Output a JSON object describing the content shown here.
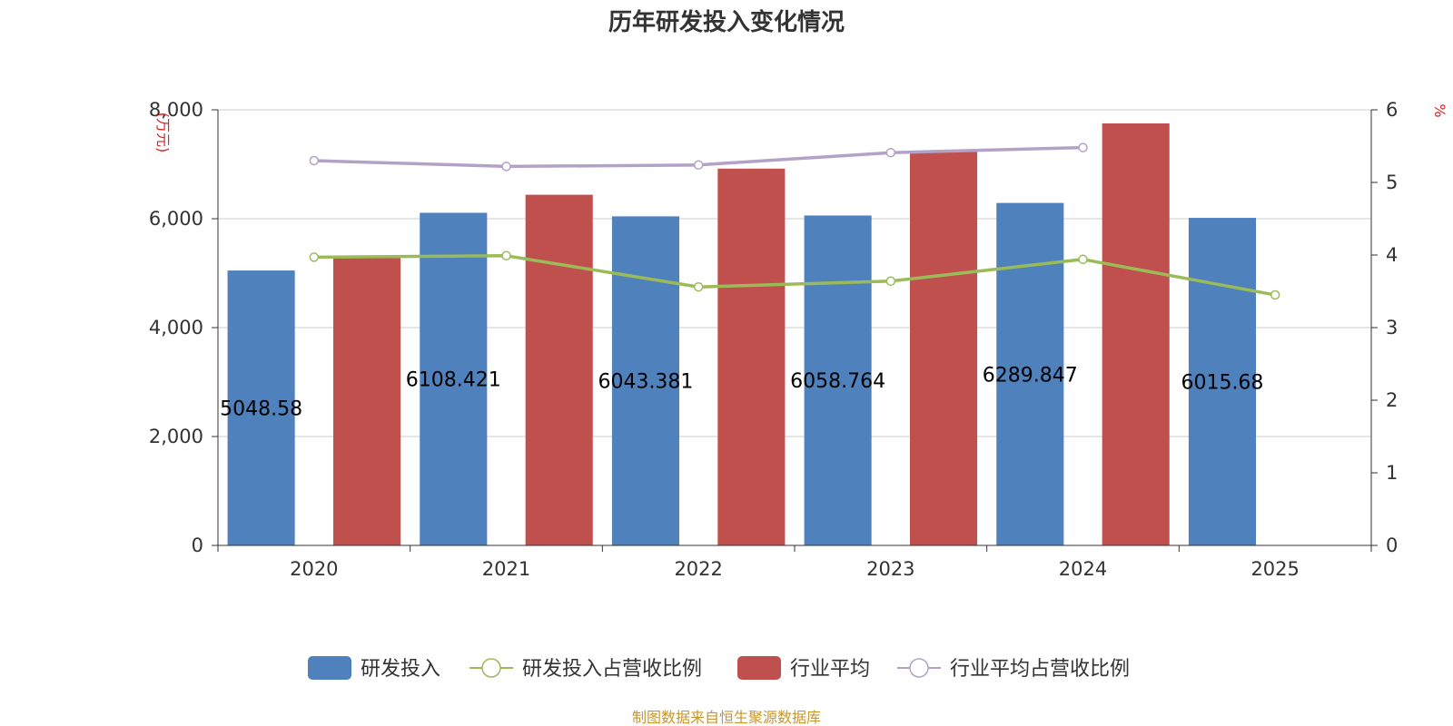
{
  "chart_data": {
    "type": "bar",
    "title": "历年研发投入变化情况",
    "categories": [
      "2020",
      "2021",
      "2022",
      "2023",
      "2024",
      "2025"
    ],
    "y_left": {
      "unit": "(万元)",
      "range": [
        0,
        8000
      ],
      "ticks": [
        "0",
        "2,000",
        "4,000",
        "6,000",
        "8,000"
      ]
    },
    "y_right": {
      "unit": "%",
      "range": [
        0,
        6
      ],
      "ticks": [
        "0",
        "1",
        "2",
        "3",
        "4",
        "5",
        "6"
      ]
    },
    "series": [
      {
        "name": "研发投入",
        "type": "bar",
        "axis": "left",
        "color": "#4f81bd",
        "values": [
          5048.58,
          6108.421,
          6043.381,
          6058.764,
          6289.847,
          6015.68
        ],
        "labels": [
          "5048.58",
          "6108.421",
          "6043.381",
          "6058.764",
          "6289.847",
          "6015.68"
        ]
      },
      {
        "name": "行业平均",
        "type": "bar",
        "axis": "left",
        "color": "#c0504d",
        "values": [
          5280,
          6440,
          6920,
          7230,
          7750,
          null
        ]
      },
      {
        "name": "研发投入占营收比例",
        "type": "line",
        "axis": "right",
        "color": "#9bbb59",
        "values": [
          3.97,
          3.99,
          3.56,
          3.64,
          3.94,
          3.45
        ]
      },
      {
        "name": "行业平均占营收比例",
        "type": "line",
        "axis": "right",
        "color": "#b3a2c7",
        "values": [
          5.3,
          5.22,
          5.24,
          5.41,
          5.48,
          null
        ]
      }
    ],
    "grid": true,
    "legend_position": "bottom"
  },
  "source": "制图数据来自恒生聚源数据库"
}
